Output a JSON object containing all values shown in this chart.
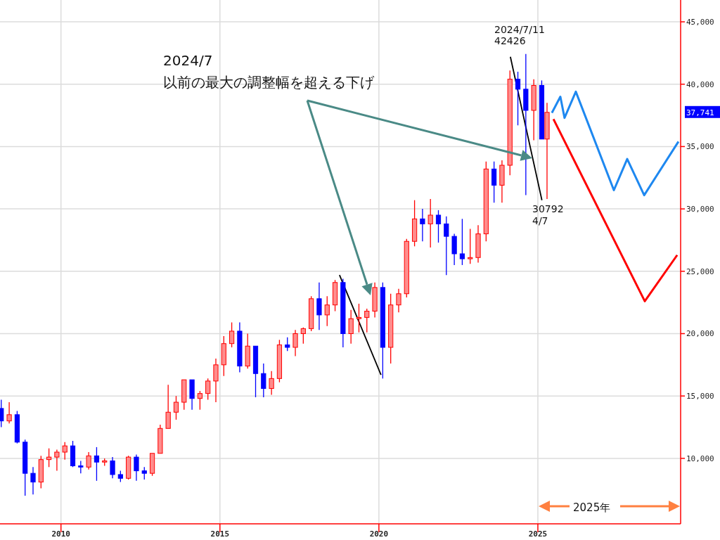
{
  "chart_data": {
    "type": "candlestick",
    "x": [
      "2008-02",
      "2008-05",
      "2008-08",
      "2008-11",
      "2009-02",
      "2009-05",
      "2009-08",
      "2009-11",
      "2010-02",
      "2010-05",
      "2010-08",
      "2010-11",
      "2011-02",
      "2011-05",
      "2011-08",
      "2011-11",
      "2012-02",
      "2012-05",
      "2012-08",
      "2012-11",
      "2013-02",
      "2013-05",
      "2013-08",
      "2013-11",
      "2014-02",
      "2014-05",
      "2014-08",
      "2014-11",
      "2015-02",
      "2015-05",
      "2015-08",
      "2015-11",
      "2016-02",
      "2016-05",
      "2016-08",
      "2016-11",
      "2017-02",
      "2017-05",
      "2017-08",
      "2017-11",
      "2018-02",
      "2018-05",
      "2018-08",
      "2018-11",
      "2019-02",
      "2019-05",
      "2019-08",
      "2019-11",
      "2020-02",
      "2020-05",
      "2020-08",
      "2020-11",
      "2021-02",
      "2021-05",
      "2021-08",
      "2021-11",
      "2022-02",
      "2022-05",
      "2022-08",
      "2022-11",
      "2023-02",
      "2023-05",
      "2023-08",
      "2023-11",
      "2024-02",
      "2024-05",
      "2024-08",
      "2024-11",
      "2025-02",
      "2025-04"
    ],
    "ohlc": [
      [
        14000,
        14700,
        12500,
        13000
      ],
      [
        13000,
        14500,
        12800,
        13500
      ],
      [
        13500,
        13800,
        11200,
        11300
      ],
      [
        11300,
        11500,
        7000,
        8800
      ],
      [
        8800,
        9300,
        7100,
        8100
      ],
      [
        8100,
        10200,
        7600,
        9900
      ],
      [
        9900,
        10800,
        9300,
        10100
      ],
      [
        10100,
        10700,
        9000,
        10500
      ],
      [
        10500,
        11300,
        9900,
        11000
      ],
      [
        11000,
        11400,
        9300,
        9400
      ],
      [
        9400,
        9800,
        8800,
        9300
      ],
      [
        9300,
        10500,
        9100,
        10200
      ],
      [
        10200,
        10900,
        8200,
        9700
      ],
      [
        9700,
        10000,
        9400,
        9800
      ],
      [
        9800,
        10100,
        8400,
        8700
      ],
      [
        8700,
        9000,
        8100,
        8400
      ],
      [
        8400,
        10200,
        8300,
        10100
      ],
      [
        10100,
        10300,
        8200,
        9000
      ],
      [
        9000,
        9300,
        8300,
        8800
      ],
      [
        8800,
        10400,
        8600,
        10400
      ],
      [
        10400,
        12700,
        10400,
        12400
      ],
      [
        12400,
        15900,
        12400,
        13700
      ],
      [
        13700,
        15000,
        13100,
        14500
      ],
      [
        14500,
        16300,
        13900,
        16300
      ],
      [
        16300,
        16300,
        13900,
        14800
      ],
      [
        14800,
        15400,
        13900,
        15200
      ],
      [
        15200,
        16400,
        14700,
        16200
      ],
      [
        16200,
        18000,
        14500,
        17500
      ],
      [
        17500,
        19800,
        16600,
        19200
      ],
      [
        19200,
        20900,
        18900,
        20200
      ],
      [
        20200,
        20900,
        16900,
        17400
      ],
      [
        17400,
        20000,
        17200,
        19000
      ],
      [
        19000,
        19000,
        14900,
        16800
      ],
      [
        16800,
        17600,
        14900,
        15600
      ],
      [
        15600,
        17000,
        15100,
        16400
      ],
      [
        16400,
        19500,
        16100,
        19100
      ],
      [
        19100,
        19700,
        18600,
        18900
      ],
      [
        18900,
        20300,
        18200,
        20000
      ],
      [
        20000,
        20500,
        19200,
        20400
      ],
      [
        20400,
        23000,
        20200,
        22800
      ],
      [
        22800,
        24100,
        20300,
        21500
      ],
      [
        21500,
        23000,
        20600,
        22300
      ],
      [
        22300,
        24300,
        21800,
        24100
      ],
      [
        24100,
        24400,
        18900,
        20000
      ],
      [
        20000,
        21900,
        19200,
        21200
      ],
      [
        21200,
        22400,
        20100,
        21300
      ],
      [
        21300,
        22000,
        20100,
        21800
      ],
      [
        21800,
        24100,
        21300,
        23700
      ],
      [
        23700,
        24100,
        16400,
        18900
      ],
      [
        18900,
        23200,
        17600,
        22300
      ],
      [
        22300,
        23600,
        21700,
        23200
      ],
      [
        23200,
        27600,
        22900,
        27400
      ],
      [
        27400,
        30700,
        27000,
        29200
      ],
      [
        29200,
        30000,
        27400,
        28800
      ],
      [
        28800,
        30800,
        26900,
        29500
      ],
      [
        29500,
        29900,
        27300,
        28800
      ],
      [
        28800,
        29400,
        24700,
        27800
      ],
      [
        27800,
        28000,
        25500,
        26400
      ],
      [
        26400,
        29200,
        25500,
        26000
      ],
      [
        26000,
        28400,
        25600,
        26100
      ],
      [
        26100,
        28700,
        25700,
        28000
      ],
      [
        28000,
        33800,
        27400,
        33200
      ],
      [
        33200,
        33800,
        30500,
        31900
      ],
      [
        31900,
        33900,
        30500,
        33500
      ],
      [
        33500,
        41100,
        32700,
        40400
      ],
      [
        40400,
        41000,
        36700,
        39600
      ],
      [
        39600,
        42426,
        31100,
        37900
      ],
      [
        37900,
        40400,
        35500,
        39900
      ],
      [
        39900,
        40300,
        35600,
        35600
      ],
      [
        35600,
        38500,
        30792,
        37741
      ]
    ],
    "series": [
      {
        "type": "line",
        "color": "#1e88f0",
        "x": [
          "2025-06-10",
          "2025-09-16",
          "2025-11-03",
          "2026-03-11",
          "2027-05-22",
          "2027-10-23",
          "2028-05-05",
          "2029-06-03"
        ],
        "values": [
          37700,
          39000,
          37300,
          39400,
          31500,
          34000,
          31100,
          35400
        ]
      },
      {
        "type": "line",
        "color": "#ff0000",
        "x": [
          "2025-06-28",
          "2028-05-12",
          "2029-05-19"
        ],
        "values": [
          37200,
          22600,
          26300
        ]
      },
      {
        "type": "line",
        "color": "#000000",
        "x": [
          "2018-10-05",
          "2020-01-25"
        ],
        "values": [
          24700,
          16700
        ]
      },
      {
        "type": "line",
        "color": "#000000",
        "x": [
          "2024-02-20",
          "2025-02-17"
        ],
        "values": [
          42200,
          30700
        ]
      }
    ],
    "xlim": [
      "2008-01-31",
      "2029-06-28"
    ],
    "xticks": [
      "2010",
      "2015",
      "2020",
      "2025"
    ],
    "ylim": [
      4750,
      46750
    ],
    "yticks": [
      {
        "value": 10000,
        "label": "10,000"
      },
      {
        "value": 15000,
        "label": "15,000"
      },
      {
        "value": 20000,
        "label": "20,000"
      },
      {
        "value": 25000,
        "label": "25,000"
      },
      {
        "value": 30000,
        "label": "30,000"
      },
      {
        "value": 35000,
        "label": "35,000"
      },
      {
        "value": 40000,
        "label": "40,000"
      },
      {
        "value": 45000,
        "label": "45,000"
      }
    ],
    "grid": true,
    "annotations": [
      "2024/7",
      "以前の最大の調整幅を超える下げ",
      "2024/7/11",
      "42426",
      "30792",
      "4/7",
      "37,741",
      "2025年"
    ]
  }
}
